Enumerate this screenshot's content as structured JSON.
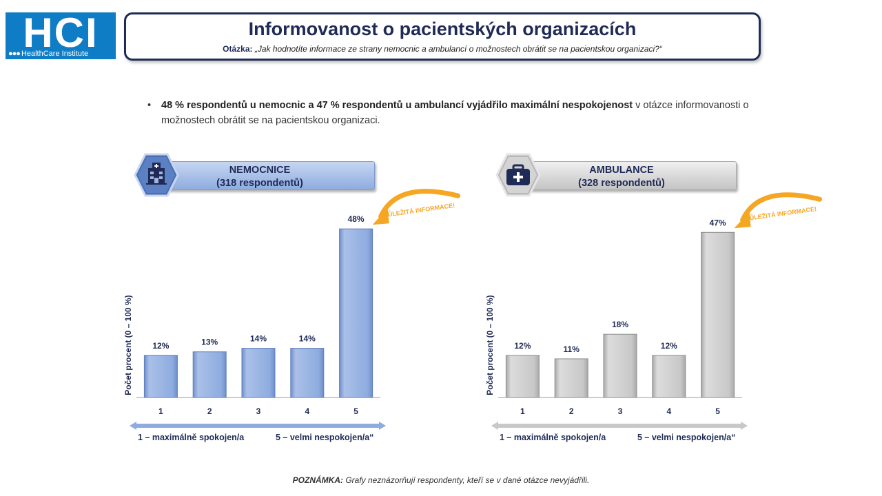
{
  "logo": {
    "main": "HCI",
    "sub": "HealthCare Institute"
  },
  "title": {
    "main": "Informovanost o pacientských organizacích",
    "question_label": "Otázka:",
    "question_text": "„Jak hodnotíte informace ze strany nemocnic a ambulancí o možnostech obrátit se na pacientskou organizaci?“"
  },
  "bullet": {
    "bold": "48 % respondentů u nemocnic a 47 % respondentů u ambulancí vyjádřilo maximální nespokojenost",
    "rest": " v otázce informovanosti o možnostech obrátit se na pacientskou organizaci."
  },
  "note": {
    "label": "POZNÁMKA:",
    "text": " Grafy neznázorňují respondenty, kteří se v dané otázce nevyjádřili."
  },
  "colors": {
    "title": "#1f2a56",
    "hospital_bar": "#8eacdf",
    "clinic_bar": "#c8c8c8",
    "callout": "#f5a623"
  },
  "chart_data": [
    {
      "type": "bar",
      "header": "NEMOCNICE",
      "subheader": "(318 respondentů)",
      "icon": "hospital-icon",
      "categories": [
        "1",
        "2",
        "3",
        "4",
        "5"
      ],
      "values": [
        12,
        13,
        14,
        14,
        48
      ],
      "value_labels": [
        "12%",
        "13%",
        "14%",
        "14%",
        "48%"
      ],
      "ylabel": "Počet procent  (0 – 100 %)",
      "ylim": [
        0,
        50
      ],
      "grid": false,
      "callout": "DŮLEŽITÁ INFORMACE!",
      "scale_left": "1 – maximálně spokojen/a",
      "scale_right": "5 – velmi nespokojen/a“"
    },
    {
      "type": "bar",
      "header": "AMBULANCE",
      "subheader": "(328 respondentů)",
      "icon": "medical-kit-icon",
      "categories": [
        "1",
        "2",
        "3",
        "4",
        "5"
      ],
      "values": [
        12,
        11,
        18,
        12,
        47
      ],
      "value_labels": [
        "12%",
        "11%",
        "18%",
        "12%",
        "47%"
      ],
      "ylabel": "Počet procent  (0 – 100 %)",
      "ylim": [
        0,
        50
      ],
      "grid": false,
      "callout": "DŮLEŽITÁ INFORMACE!",
      "scale_left": "1 – maximálně spokojen/a",
      "scale_right": "5 – velmi nespokojen/a“"
    }
  ]
}
